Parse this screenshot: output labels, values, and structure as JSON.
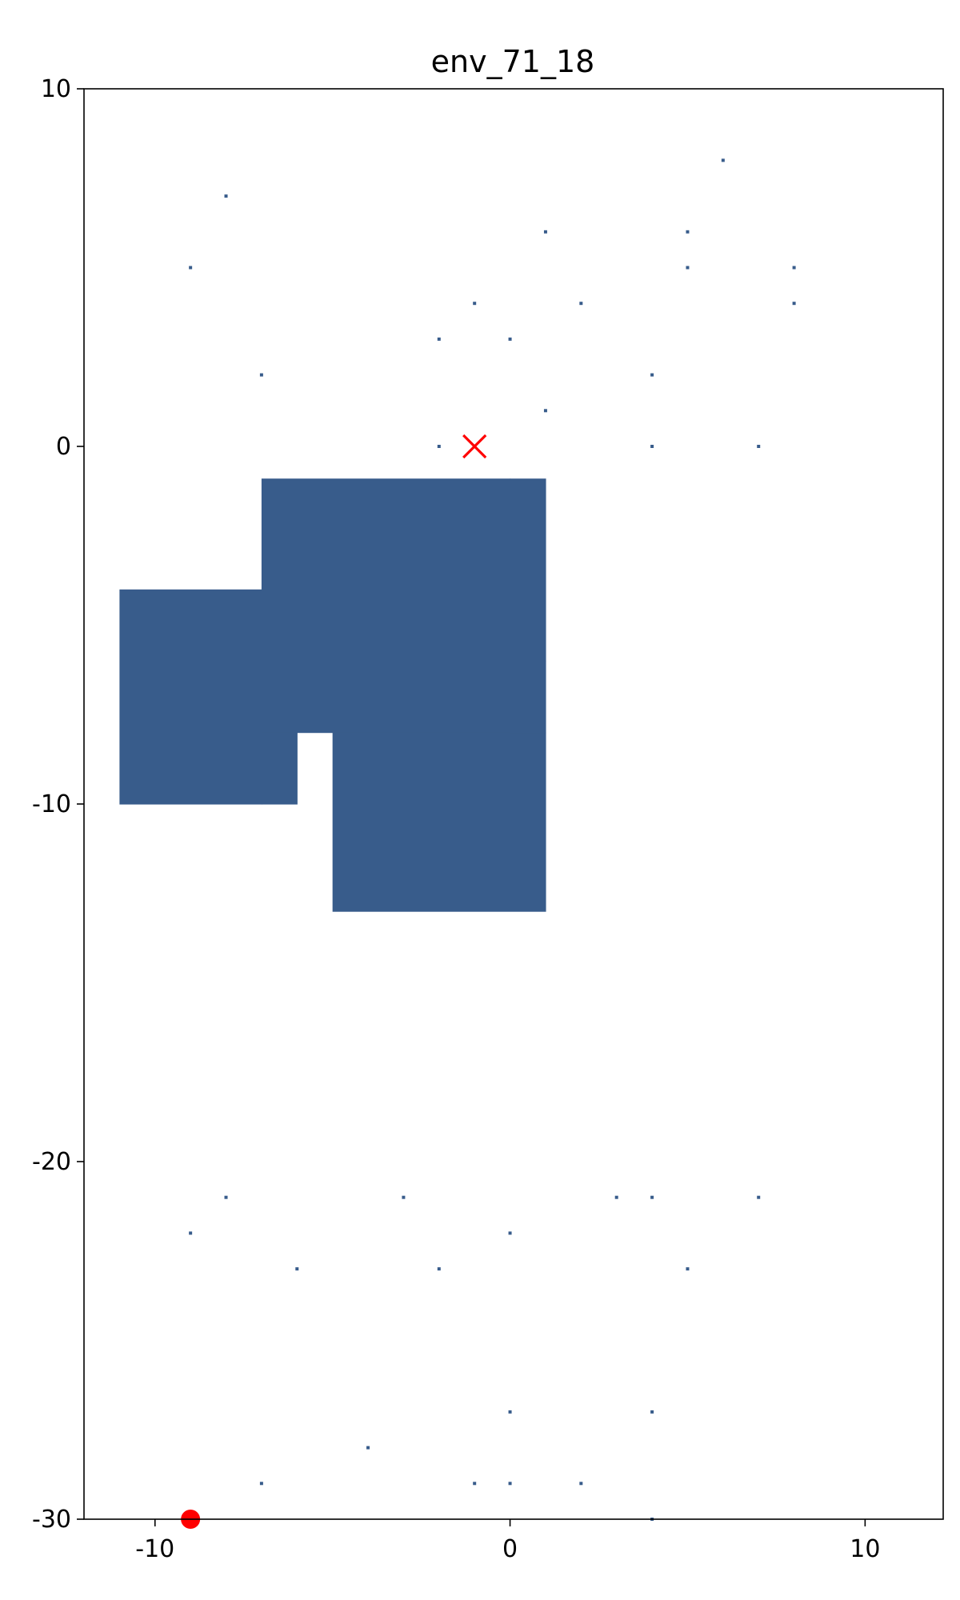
{
  "chart_data": {
    "type": "scatter",
    "title": "env_71_18",
    "xlabel": "",
    "ylabel": "",
    "xlim": [
      -12,
      12.2
    ],
    "ylim": [
      -30,
      10
    ],
    "grid": false,
    "x_ticks": [
      {
        "value": -10,
        "label": "-10"
      },
      {
        "value": 0,
        "label": "0"
      },
      {
        "value": 10,
        "label": "10"
      }
    ],
    "y_ticks": [
      {
        "value": 10,
        "label": "10"
      },
      {
        "value": 0,
        "label": "0"
      },
      {
        "value": -10,
        "label": "-10"
      },
      {
        "value": -20,
        "label": "-20"
      },
      {
        "value": -30,
        "label": "-30"
      }
    ],
    "obstacle_color": "#385c8b",
    "marker_color": "#ff0000",
    "obstacle_rects": [
      {
        "x0": -7,
        "x1": 0,
        "y0": -8,
        "y1": -0.9
      },
      {
        "x0": 0,
        "x1": 1,
        "y0": -6,
        "y1": -0.9
      },
      {
        "x0": -11,
        "x1": -7,
        "y0": -10,
        "y1": -4
      },
      {
        "x0": -7,
        "x1": -6,
        "y0": -10,
        "y1": -8
      },
      {
        "x0": -5,
        "x1": 1,
        "y0": -13,
        "y1": -8
      },
      {
        "x0": 0,
        "x1": 1,
        "y0": -8,
        "y1": -6
      }
    ],
    "obstacle_dots": [
      [
        6,
        8
      ],
      [
        -8,
        7
      ],
      [
        1,
        6
      ],
      [
        5,
        6
      ],
      [
        -9,
        5
      ],
      [
        5,
        5
      ],
      [
        8,
        5
      ],
      [
        -1,
        4
      ],
      [
        2,
        4
      ],
      [
        8,
        4
      ],
      [
        -2,
        3
      ],
      [
        0,
        3
      ],
      [
        -7,
        2
      ],
      [
        4,
        2
      ],
      [
        1,
        1
      ],
      [
        -2,
        0
      ],
      [
        4,
        0
      ],
      [
        7,
        0
      ],
      [
        -8,
        -21
      ],
      [
        -3,
        -21
      ],
      [
        3,
        -21
      ],
      [
        4,
        -21
      ],
      [
        7,
        -21
      ],
      [
        -9,
        -22
      ],
      [
        0,
        -22
      ],
      [
        -6,
        -23
      ],
      [
        -2,
        -23
      ],
      [
        5,
        -23
      ],
      [
        0,
        -27
      ],
      [
        4,
        -27
      ],
      [
        -4,
        -28
      ],
      [
        -7,
        -29
      ],
      [
        -1,
        -29
      ],
      [
        0,
        -29
      ],
      [
        2,
        -29
      ],
      [
        4,
        -30
      ]
    ],
    "goal": {
      "x": -1,
      "y": 0,
      "marker": "x"
    },
    "start": {
      "x": -9,
      "y": -30,
      "marker": "circle"
    }
  }
}
